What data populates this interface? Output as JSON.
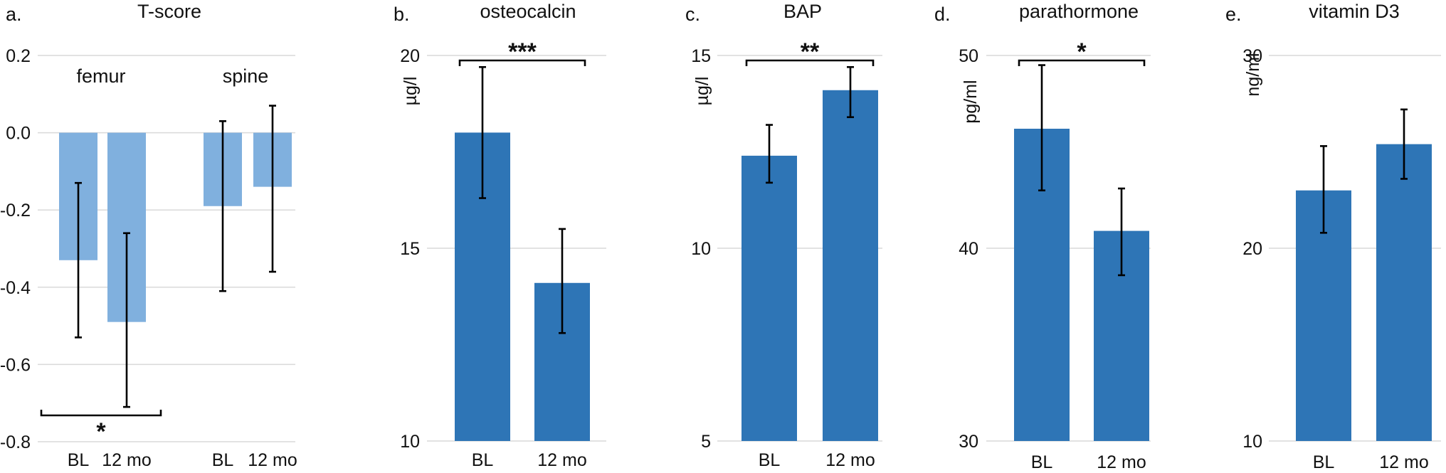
{
  "chart_data": [
    {
      "type": "bar",
      "panel": "a.",
      "title": "T-score",
      "ylabel": "",
      "ylim": [
        -0.8,
        0.2
      ],
      "yticks": [
        "0.2",
        "0.0",
        "-0.2",
        "-0.4",
        "-0.6",
        "-0.8"
      ],
      "color": "#80b0de",
      "groups": [
        {
          "label": "femur",
          "categories": [
            "BL",
            "12 mo"
          ],
          "values": [
            -0.33,
            -0.49
          ],
          "err_low": [
            -0.53,
            -0.71
          ],
          "err_high": [
            -0.13,
            -0.26
          ]
        },
        {
          "label": "spine",
          "categories": [
            "BL",
            "12 mo"
          ],
          "values": [
            -0.19,
            -0.14
          ],
          "err_low": [
            -0.41,
            -0.36
          ],
          "err_high": [
            0.03,
            0.07
          ]
        }
      ],
      "significance": {
        "label": "*",
        "between": "femur BL vs 12 mo",
        "position": "below"
      }
    },
    {
      "type": "bar",
      "panel": "b.",
      "title": "osteocalcin",
      "ylabel": "µg/l",
      "ylim": [
        10,
        20
      ],
      "yticks": [
        "20",
        "15",
        "10"
      ],
      "color": "#2e75b6",
      "categories": [
        "BL",
        "12 mo"
      ],
      "values": [
        18.0,
        14.1
      ],
      "err_low": [
        16.3,
        12.8
      ],
      "err_high": [
        19.7,
        15.5
      ],
      "significance": {
        "label": "***",
        "between": "BL vs 12 mo",
        "position": "above"
      }
    },
    {
      "type": "bar",
      "panel": "c.",
      "title": "BAP",
      "ylabel": "µg/l",
      "ylim": [
        5,
        15
      ],
      "yticks": [
        "15",
        "10",
        "5"
      ],
      "color": "#2e75b6",
      "categories": [
        "BL",
        "12 mo"
      ],
      "values": [
        12.4,
        14.1
      ],
      "err_low": [
        11.7,
        13.4
      ],
      "err_high": [
        13.2,
        14.7
      ],
      "significance": {
        "label": "**",
        "between": "BL vs 12 mo",
        "position": "above"
      }
    },
    {
      "type": "bar",
      "panel": "d.",
      "title": "parathormone",
      "ylabel": "pg/ml",
      "ylim": [
        30,
        50
      ],
      "yticks": [
        "50",
        "40",
        "30"
      ],
      "color": "#2e75b6",
      "categories": [
        "BL",
        "12 mo"
      ],
      "values": [
        46.2,
        40.9
      ],
      "err_low": [
        43.0,
        38.6
      ],
      "err_high": [
        49.5,
        43.1
      ],
      "significance": {
        "label": "*",
        "between": "BL vs 12 mo",
        "position": "above"
      }
    },
    {
      "type": "bar",
      "panel": "e.",
      "title": "vitamin D3",
      "ylabel": "ng/ml",
      "ylim": [
        10,
        30
      ],
      "yticks": [
        "30",
        "20",
        "10"
      ],
      "color": "#2e75b6",
      "categories": [
        "BL",
        "12 mo"
      ],
      "values": [
        23.0,
        25.4
      ],
      "err_low": [
        20.8,
        23.6
      ],
      "err_high": [
        25.3,
        27.2
      ],
      "significance": null
    }
  ]
}
